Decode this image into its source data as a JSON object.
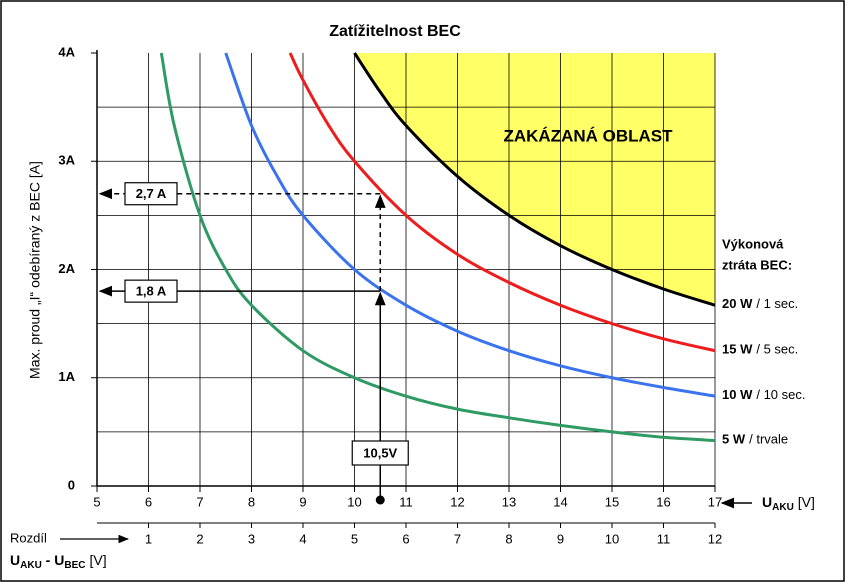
{
  "chart_data": {
    "type": "line",
    "title": "Zatížitelnost BEC",
    "ylabel": "Max. proud „I“ odebíraný z BEC [A]",
    "xlabel": {
      "main": "U",
      "sub": "AKU",
      "unit": "[V]"
    },
    "x2label": {
      "lead": "Rozdíl",
      "u1": "U",
      "s1": "AKU",
      "sep": " - U",
      "s2": "BEC",
      "unit": "[V]"
    },
    "xlim": [
      5,
      17
    ],
    "xticks": [
      5,
      6,
      7,
      8,
      9,
      10,
      11,
      12,
      13,
      14,
      15,
      16,
      17
    ],
    "x2lim": [
      0,
      12
    ],
    "x2ticks": [
      1,
      2,
      3,
      4,
      5,
      6,
      7,
      8,
      9,
      10,
      11,
      12
    ],
    "ylim": [
      0,
      4
    ],
    "yticks": [
      0,
      {
        "value": 1,
        "label": "1A"
      },
      {
        "value": 2,
        "label": "2A"
      },
      {
        "value": 3,
        "label": "3A"
      },
      {
        "value": 4,
        "label": "4A"
      }
    ],
    "ygrid": [
      0.5,
      1,
      1.5,
      2,
      2.5,
      3,
      3.5
    ],
    "grid": true,
    "legend_title": [
      "Výkonová",
      "ztráta BEC:"
    ],
    "forbidden_label": "ZAKÁZANÁ OBLAST",
    "forbidden_color": "#ffff66",
    "series": [
      {
        "name": "20 W",
        "duration": "/ 1 sec.",
        "color": "#000000",
        "x": [
          10,
          10.5,
          11,
          12,
          13,
          14,
          15,
          16,
          17
        ],
        "values": [
          4,
          3.64,
          3.33,
          2.86,
          2.5,
          2.22,
          2,
          1.82,
          1.67
        ]
      },
      {
        "name": "15 W",
        "duration": "/ 5 sec.",
        "color": "#ee1c1c",
        "x": [
          8.75,
          9,
          9.5,
          10,
          11,
          12,
          13,
          14,
          15,
          16,
          17
        ],
        "values": [
          4,
          3.75,
          3.33,
          3,
          2.5,
          2.14,
          1.88,
          1.67,
          1.5,
          1.36,
          1.25
        ]
      },
      {
        "name": "10 W",
        "duration": "/ 10 sec.",
        "color": "#3b73ee",
        "x": [
          7.5,
          8,
          8.5,
          9,
          10,
          11,
          12,
          13,
          14,
          15,
          16,
          17
        ],
        "values": [
          4,
          3.33,
          2.86,
          2.5,
          2,
          1.67,
          1.43,
          1.25,
          1.11,
          1,
          0.91,
          0.83
        ]
      },
      {
        "name": "5 W",
        "duration": "/ trvale",
        "color": "#2f9a63",
        "x": [
          6.25,
          6.5,
          7,
          7.5,
          8,
          9,
          10,
          11,
          12,
          13,
          14,
          15,
          16,
          17
        ],
        "values": [
          4,
          3.33,
          2.5,
          2,
          1.67,
          1.25,
          1,
          0.83,
          0.71,
          0.63,
          0.56,
          0.5,
          0.45,
          0.42
        ]
      }
    ],
    "y_markers": [
      {
        "label": "2,7 A",
        "value": 2.7
      },
      {
        "label": "1,8 A",
        "value": 1.8
      }
    ],
    "x_marker": {
      "label": "10,5V",
      "value": 10.5
    }
  }
}
